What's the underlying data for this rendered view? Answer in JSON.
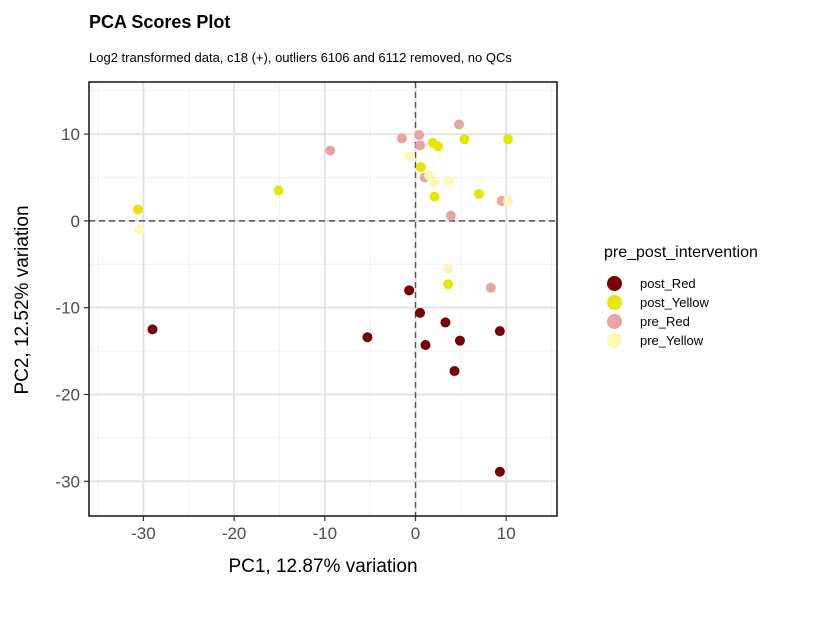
{
  "chart_data": {
    "type": "scatter",
    "title": "PCA Scores Plot",
    "subtitle": "Log2 transformed data, c18 (+), outliers 6106 and 6112 removed, no QCs",
    "xlabel": "PC1, 12.87% variation",
    "ylabel": "PC2, 12.52% variation",
    "xlim": [
      -36,
      15.6
    ],
    "ylim": [
      -34,
      16
    ],
    "xticks": [
      -30,
      -20,
      -10,
      0,
      10
    ],
    "xtick_labels": [
      "-30",
      "-20",
      "-10",
      "0",
      "10"
    ],
    "yticks": [
      -30,
      -20,
      -10,
      0,
      10
    ],
    "ytick_labels": [
      "-30",
      "-20",
      "-10",
      "0",
      "10"
    ],
    "grid": true,
    "reference_lines": {
      "x": 0,
      "y": 0,
      "style": "dashed"
    },
    "legend": {
      "title": "pre_post_intervention",
      "placement": "right"
    },
    "series": [
      {
        "name": "post_Red",
        "color": "#7a0000",
        "points": [
          [
            -29.0,
            -12.5
          ],
          [
            -5.3,
            -13.4
          ],
          [
            -0.7,
            -8.0
          ],
          [
            0.5,
            -10.6
          ],
          [
            1.1,
            -14.3
          ],
          [
            3.3,
            -11.7
          ],
          [
            4.3,
            -17.3
          ],
          [
            4.9,
            -13.8
          ],
          [
            9.3,
            -12.7
          ],
          [
            9.3,
            -28.9
          ]
        ]
      },
      {
        "name": "post_Yellow",
        "color": "#e6e600",
        "points": [
          [
            -30.6,
            1.3
          ],
          [
            -15.1,
            3.5
          ],
          [
            0.6,
            6.2
          ],
          [
            1.9,
            9.0
          ],
          [
            2.5,
            8.6
          ],
          [
            2.1,
            2.8
          ],
          [
            3.6,
            -7.3
          ],
          [
            5.4,
            9.4
          ],
          [
            7.0,
            3.1
          ],
          [
            10.2,
            9.4
          ]
        ]
      },
      {
        "name": "pre_Red",
        "color": "#e8a3a3",
        "points": [
          [
            -9.4,
            8.1
          ],
          [
            -1.5,
            9.5
          ],
          [
            0.4,
            9.9
          ],
          [
            0.5,
            8.7
          ],
          [
            1.0,
            5.0
          ],
          [
            3.9,
            0.6
          ],
          [
            4.8,
            11.1
          ],
          [
            8.3,
            -7.7
          ],
          [
            9.5,
            2.3
          ]
        ]
      },
      {
        "name": "pre_Yellow",
        "color": "#fff6b3",
        "points": [
          [
            -30.4,
            -1.0
          ],
          [
            -0.6,
            7.4
          ],
          [
            1.5,
            5.2
          ],
          [
            2.1,
            4.4
          ],
          [
            3.7,
            4.6
          ],
          [
            3.6,
            -5.5
          ],
          [
            10.2,
            2.3
          ]
        ]
      }
    ]
  }
}
